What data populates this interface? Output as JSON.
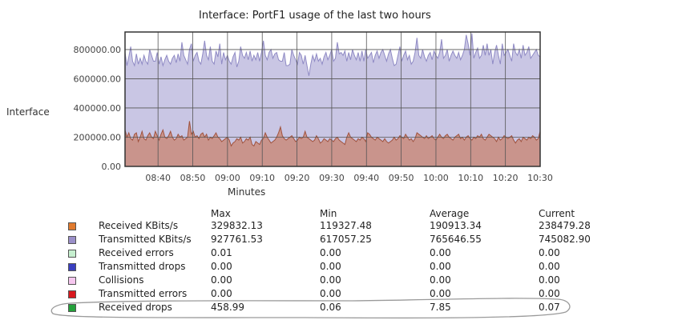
{
  "page": {
    "title": "Interface: PortF1 usage of the last two hours",
    "side_label": "Interface"
  },
  "chart_data": {
    "type": "area",
    "title": "Interface: PortF1 usage of the last two hours",
    "xlabel": "Minutes",
    "ylabel": "Interface",
    "x_ticks": [
      "08:40",
      "08:50",
      "09:00",
      "09:10",
      "09:20",
      "09:30",
      "09:40",
      "09:50",
      "10:00",
      "10:10",
      "10:20",
      "10:30"
    ],
    "y_ticks": [
      "0.00",
      "200000.00",
      "400000.00",
      "600000.00",
      "800000.00"
    ],
    "ylim": [
      0,
      920000
    ],
    "grid": true,
    "legend": "table-below",
    "series": [
      {
        "name": "Transmitted KBits/s",
        "color": "#8f8ac4",
        "fill": "#c9c6e4",
        "values": [
          780000,
          690000,
          750000,
          820000,
          720000,
          690000,
          770000,
          700000,
          740000,
          700000,
          760000,
          720000,
          700000,
          800000,
          760000,
          720000,
          720000,
          780000,
          700000,
          750000,
          690000,
          730000,
          760000,
          720000,
          700000,
          740000,
          760000,
          710000,
          770000,
          720000,
          850000,
          760000,
          730000,
          700000,
          800000,
          840000,
          720000,
          760000,
          780000,
          720000,
          700000,
          770000,
          860000,
          760000,
          730000,
          820000,
          720000,
          700000,
          790000,
          750000,
          840000,
          700000,
          780000,
          730000,
          760000,
          720000,
          700000,
          750000,
          780000,
          680000,
          720000,
          820000,
          760000,
          740000,
          780000,
          730000,
          790000,
          720000,
          760000,
          730000,
          780000,
          720000,
          780000,
          860000,
          760000,
          730000,
          780000,
          800000,
          740000,
          770000,
          780000,
          730000,
          720000,
          720000,
          780000,
          690000,
          690000,
          700000,
          800000,
          760000,
          730000,
          700000,
          780000,
          760000,
          700000,
          760000,
          690000,
          620000,
          700000,
          760000,
          720000,
          770000,
          720000,
          740000,
          700000,
          750000,
          780000,
          730000,
          760000,
          800000,
          720000,
          740000,
          850000,
          770000,
          780000,
          760000,
          790000,
          720000,
          780000,
          730000,
          800000,
          760000,
          730000,
          780000,
          720000,
          790000,
          720000,
          800000,
          740000,
          760000,
          780000,
          710000,
          760000,
          790000,
          740000,
          780000,
          800000,
          760000,
          720000,
          770000,
          800000,
          740000,
          690000,
          700000,
          760000,
          820000,
          720000,
          760000,
          790000,
          730000,
          760000,
          700000,
          720000,
          780000,
          880000,
          760000,
          740000,
          800000,
          750000,
          720000,
          760000,
          780000,
          730000,
          790000,
          760000,
          740000,
          780000,
          870000,
          740000,
          760000,
          800000,
          720000,
          760000,
          790000,
          760000,
          740000,
          780000,
          730000,
          760000,
          800000,
          900000,
          840000,
          760000,
          910000,
          740000,
          780000,
          810000,
          740000,
          760000,
          830000,
          760000,
          840000,
          760000,
          800000,
          700000,
          780000,
          830000,
          760000,
          700000,
          840000,
          760000,
          780000,
          800000,
          760000,
          720000,
          840000,
          780000,
          760000,
          800000,
          740000,
          830000,
          760000,
          780000,
          820000,
          740000,
          760000,
          780000,
          800000,
          760000,
          750000
        ]
      },
      {
        "name": "Received KBits/s",
        "color": "#a0523d",
        "fill": "#c9948c",
        "values": [
          250000,
          200000,
          230000,
          190000,
          180000,
          220000,
          230000,
          170000,
          200000,
          240000,
          190000,
          180000,
          210000,
          230000,
          200000,
          190000,
          240000,
          210000,
          180000,
          220000,
          250000,
          200000,
          190000,
          210000,
          240000,
          200000,
          180000,
          190000,
          220000,
          200000,
          210000,
          180000,
          190000,
          200000,
          310000,
          220000,
          240000,
          200000,
          210000,
          190000,
          220000,
          230000,
          200000,
          220000,
          180000,
          200000,
          190000,
          210000,
          230000,
          200000,
          190000,
          170000,
          180000,
          190000,
          200000,
          180000,
          140000,
          160000,
          170000,
          190000,
          180000,
          200000,
          160000,
          170000,
          190000,
          180000,
          200000,
          150000,
          140000,
          170000,
          160000,
          150000,
          180000,
          190000,
          230000,
          200000,
          180000,
          160000,
          170000,
          180000,
          200000,
          230000,
          270000,
          210000,
          190000,
          180000,
          190000,
          200000,
          210000,
          190000,
          170000,
          180000,
          200000,
          190000,
          200000,
          240000,
          200000,
          190000,
          180000,
          170000,
          180000,
          210000,
          190000,
          160000,
          170000,
          190000,
          180000,
          170000,
          190000,
          180000,
          170000,
          190000,
          200000,
          180000,
          170000,
          160000,
          150000,
          200000,
          230000,
          200000,
          190000,
          180000,
          170000,
          190000,
          180000,
          200000,
          190000,
          170000,
          230000,
          220000,
          200000,
          190000,
          180000,
          200000,
          190000,
          180000,
          170000,
          190000,
          170000,
          160000,
          170000,
          180000,
          200000,
          180000,
          190000,
          210000,
          200000,
          190000,
          220000,
          200000,
          180000,
          190000,
          170000,
          190000,
          230000,
          220000,
          210000,
          200000,
          190000,
          210000,
          190000,
          200000,
          210000,
          190000,
          180000,
          200000,
          220000,
          200000,
          190000,
          210000,
          220000,
          200000,
          190000,
          180000,
          200000,
          210000,
          220000,
          190000,
          200000,
          180000,
          200000,
          210000,
          190000,
          180000,
          200000,
          190000,
          210000,
          200000,
          220000,
          190000,
          180000,
          200000,
          220000,
          210000,
          200000,
          190000,
          170000,
          200000,
          180000,
          190000,
          210000,
          200000,
          190000,
          200000,
          210000,
          180000,
          160000,
          180000,
          190000,
          170000,
          200000,
          190000,
          180000,
          200000,
          190000,
          210000,
          200000,
          180000,
          190000,
          240000
        ]
      }
    ]
  },
  "stats": {
    "headers": {
      "max": "Max",
      "min": "Min",
      "avg": "Average",
      "cur": "Current"
    },
    "rows": [
      {
        "label": "Received KBits/s",
        "color": "#e07a2e",
        "max": "329832.13",
        "min": "119327.48",
        "avg": "190913.34",
        "cur": "238479.28"
      },
      {
        "label": "Transmitted KBits/s",
        "color": "#9a8fc9",
        "max": "927761.53",
        "min": "617057.25",
        "avg": "765646.55",
        "cur": "745082.90"
      },
      {
        "label": "Received errors",
        "color": "#c6efcf",
        "max": "0.01",
        "min": "0.00",
        "avg": "0.00",
        "cur": "0.00"
      },
      {
        "label": "Transmitted drops",
        "color": "#3a3fbf",
        "max": "0.00",
        "min": "0.00",
        "avg": "0.00",
        "cur": "0.00"
      },
      {
        "label": "Collisions",
        "color": "#f6c7ef",
        "max": "0.00",
        "min": "0.00",
        "avg": "0.00",
        "cur": "0.00"
      },
      {
        "label": "Transmitted errors",
        "color": "#d8181e",
        "max": "0.00",
        "min": "0.00",
        "avg": "0.00",
        "cur": "0.00"
      },
      {
        "label": "Received drops",
        "color": "#23a13a",
        "max": "458.99",
        "min": "0.06",
        "avg": "7.85",
        "cur": "0.07"
      }
    ]
  }
}
